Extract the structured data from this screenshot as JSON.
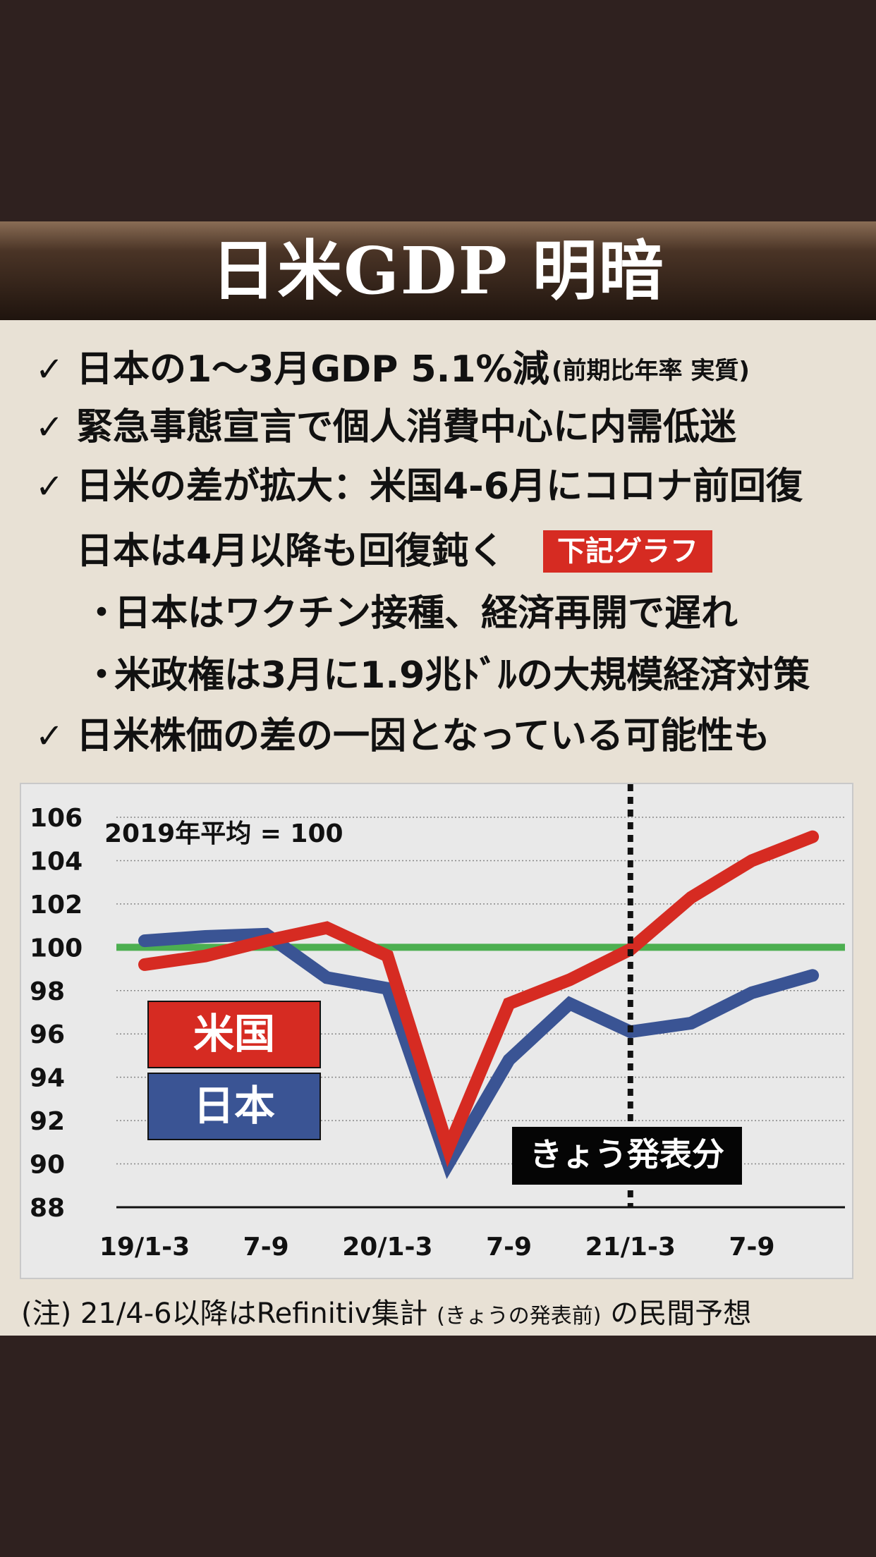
{
  "title": "日米GDP  明暗",
  "lines": [
    {
      "text": "日本の1～3月GDP 5.1%減",
      "sub": "(前期比年率  実質)"
    },
    {
      "text": "緊急事態宣言で個人消費中心に内需低迷"
    },
    {
      "text": "日米の差が拡大：米国4-6月にコロナ前回復"
    },
    {
      "text": "日本は4月以降も回復鈍く"
    },
    {
      "text": "日本はワクチン接種、経済再開で遅れ"
    },
    {
      "text": "米政権は3月に1.9兆ﾄﾞﾙの大規模経済対策"
    },
    {
      "text": "日米株価の差の一因となっている可能性も"
    }
  ],
  "check_mark": "✓",
  "bullet_mark": "・",
  "tag": "下記グラフ",
  "note": {
    "before": "(注) 21/4-6以降はRefinitiv集計",
    "small": "(きょうの発表前)",
    "after": "の民間予想"
  },
  "chart_data": {
    "type": "line",
    "annotation": "2019年平均 = 100",
    "ylim": [
      88,
      106
    ],
    "yticks": [
      106,
      104,
      102,
      100,
      98,
      96,
      94,
      92,
      90,
      88
    ],
    "xtick_labels": [
      "19/1-3",
      "7-9",
      "20/1-3",
      "7-9",
      "21/1-3",
      "7-9"
    ],
    "x": [
      "19/1-3",
      "19/4-6",
      "19/7-9",
      "19/10-12",
      "20/1-3",
      "20/4-6",
      "20/7-9",
      "20/10-12",
      "21/1-3",
      "21/4-6",
      "21/7-9",
      "21/10-12"
    ],
    "series": [
      {
        "name": "米国",
        "color": "#d62b22",
        "values": [
          99.2,
          99.6,
          100.3,
          100.9,
          99.6,
          90.7,
          97.4,
          98.5,
          99.9,
          102.3,
          104.0,
          105.1
        ]
      },
      {
        "name": "日本",
        "color": "#3a5494",
        "values": [
          100.3,
          100.5,
          100.6,
          98.6,
          98.1,
          90.0,
          94.8,
          97.4,
          96.1,
          96.5,
          97.9,
          98.7
        ]
      }
    ],
    "reference_line": {
      "value": 100,
      "color": "#4caf50"
    },
    "divider_at": "21/1-3",
    "divider_label": "きょう発表分",
    "legend": [
      "米国",
      "日本"
    ]
  }
}
